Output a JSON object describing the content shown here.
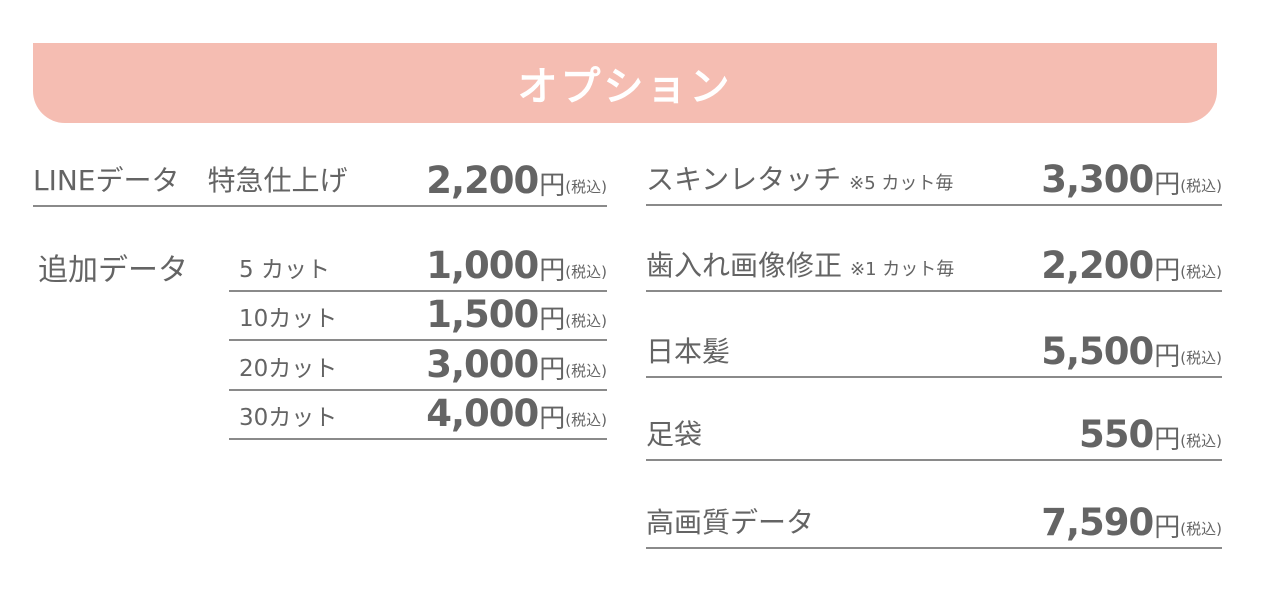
{
  "header": {
    "title": "オプション"
  },
  "currency": {
    "yen": "円",
    "tax": "(税込)"
  },
  "left": {
    "line_data": {
      "label": "LINEデータ　特急仕上げ",
      "price": "2,200"
    },
    "additional": {
      "label": "追加データ",
      "items": [
        {
          "label": "5 カット",
          "price": "1,000"
        },
        {
          "label": "10カット",
          "price": "1,500"
        },
        {
          "label": "20カット",
          "price": "3,000"
        },
        {
          "label": "30カット",
          "price": "4,000"
        }
      ]
    }
  },
  "right": [
    {
      "label": "スキンレタッチ",
      "note": "※5 カット毎",
      "price": "3,300"
    },
    {
      "label": "歯入れ画像修正",
      "note": "※1 カット毎",
      "price": "2,200"
    },
    {
      "label": "日本髪",
      "price": "5,500"
    },
    {
      "label": "足袋",
      "price": "550"
    },
    {
      "label": "高画質データ",
      "price": "7,590"
    }
  ],
  "colors": {
    "header_bg": "#f5bdb2",
    "text": "#646464",
    "rule": "#8a8a8a"
  }
}
